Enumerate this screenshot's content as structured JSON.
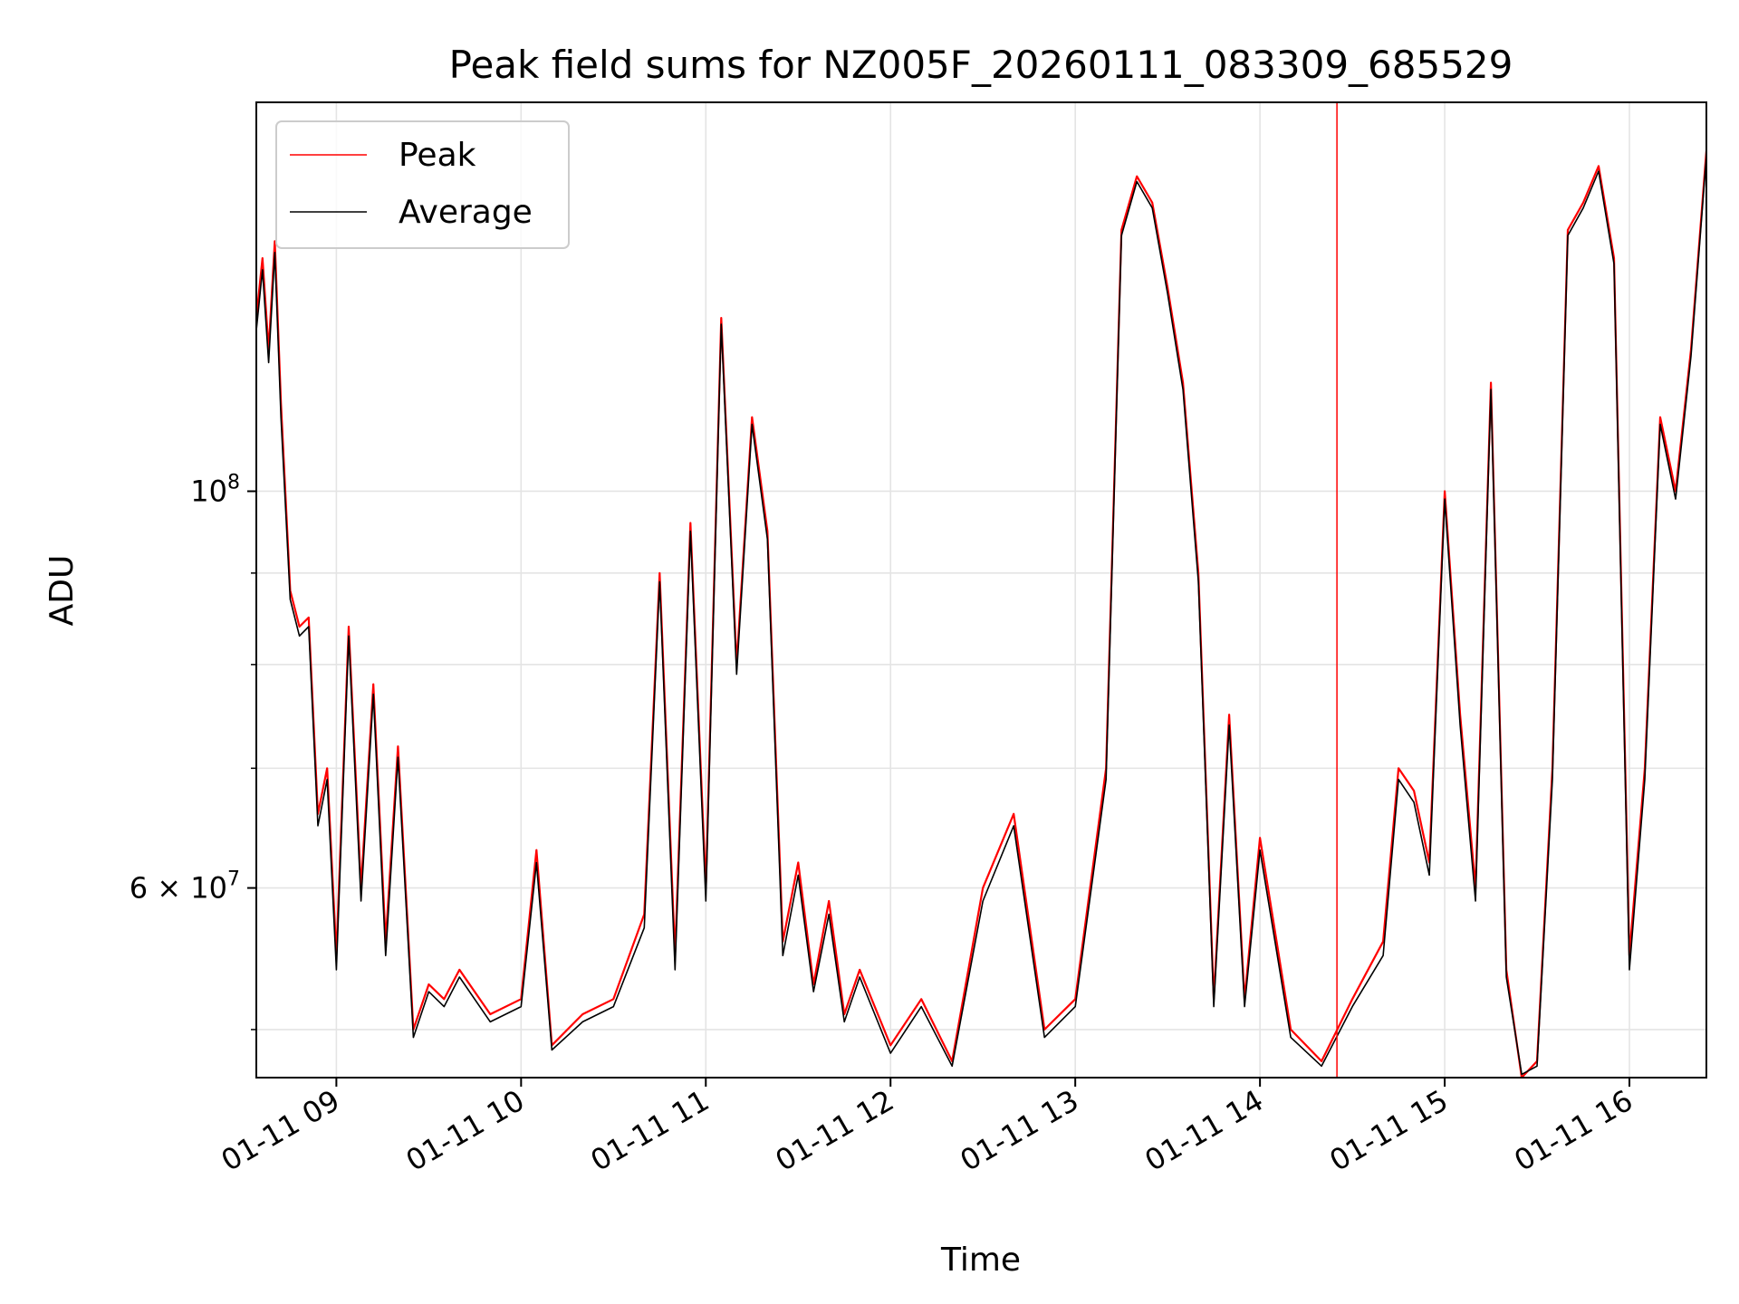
{
  "chart_data": {
    "type": "line",
    "title": "Peak field sums for NZ005F_20260111_083309_685529",
    "xlabel": "Time",
    "ylabel": "ADU",
    "y_scale": "log",
    "ylim": [
      47000000,
      165000000
    ],
    "xlim": [
      "2026-01-11 08:34",
      "2026-01-11 16:25"
    ],
    "grid": true,
    "legend_position": "top-left",
    "x_ticks": [
      {
        "value": "2026-01-11 09:00",
        "label": "01-11 09"
      },
      {
        "value": "2026-01-11 10:00",
        "label": "01-11 10"
      },
      {
        "value": "2026-01-11 11:00",
        "label": "01-11 11"
      },
      {
        "value": "2026-01-11 12:00",
        "label": "01-11 12"
      },
      {
        "value": "2026-01-11 13:00",
        "label": "01-11 13"
      },
      {
        "value": "2026-01-11 14:00",
        "label": "01-11 14"
      },
      {
        "value": "2026-01-11 15:00",
        "label": "01-11 15"
      },
      {
        "value": "2026-01-11 16:00",
        "label": "01-11 16"
      }
    ],
    "y_ticks_major": [
      {
        "value": 100000000,
        "base": "10",
        "exp": "8"
      },
      {
        "value": 60000000,
        "mantissa": "6 × 10",
        "exp": "7"
      }
    ],
    "y_ticks_minor": [
      50000000,
      70000000,
      80000000,
      90000000
    ],
    "series": [
      {
        "name": "Peak",
        "color": "#ff0000",
        "x": [
          "2026-01-11 08:34",
          "2026-01-11 08:36",
          "2026-01-11 08:38",
          "2026-01-11 08:40",
          "2026-01-11 08:42",
          "2026-01-11 08:45",
          "2026-01-11 08:48",
          "2026-01-11 08:51",
          "2026-01-11 08:54",
          "2026-01-11 08:57",
          "2026-01-11 09:00",
          "2026-01-11 09:04",
          "2026-01-11 09:08",
          "2026-01-11 09:12",
          "2026-01-11 09:16",
          "2026-01-11 09:20",
          "2026-01-11 09:25",
          "2026-01-11 09:30",
          "2026-01-11 09:35",
          "2026-01-11 09:40",
          "2026-01-11 09:50",
          "2026-01-11 10:00",
          "2026-01-11 10:05",
          "2026-01-11 10:10",
          "2026-01-11 10:20",
          "2026-01-11 10:30",
          "2026-01-11 10:40",
          "2026-01-11 10:45",
          "2026-01-11 10:50",
          "2026-01-11 10:55",
          "2026-01-11 11:00",
          "2026-01-11 11:05",
          "2026-01-11 11:10",
          "2026-01-11 11:15",
          "2026-01-11 11:20",
          "2026-01-11 11:25",
          "2026-01-11 11:30",
          "2026-01-11 11:35",
          "2026-01-11 11:40",
          "2026-01-11 11:45",
          "2026-01-11 11:50",
          "2026-01-11 12:00",
          "2026-01-11 12:10",
          "2026-01-11 12:20",
          "2026-01-11 12:30",
          "2026-01-11 12:40",
          "2026-01-11 12:50",
          "2026-01-11 13:00",
          "2026-01-11 13:10",
          "2026-01-11 13:15",
          "2026-01-11 13:20",
          "2026-01-11 13:25",
          "2026-01-11 13:30",
          "2026-01-11 13:35",
          "2026-01-11 13:40",
          "2026-01-11 13:45",
          "2026-01-11 13:50",
          "2026-01-11 13:55",
          "2026-01-11 14:00",
          "2026-01-11 14:10",
          "2026-01-11 14:20",
          "2026-01-11 14:30",
          "2026-01-11 14:40",
          "2026-01-11 14:45",
          "2026-01-11 14:50",
          "2026-01-11 14:55",
          "2026-01-11 15:00",
          "2026-01-11 15:05",
          "2026-01-11 15:10",
          "2026-01-11 15:15",
          "2026-01-11 15:20",
          "2026-01-11 15:25",
          "2026-01-11 15:30",
          "2026-01-11 15:35",
          "2026-01-11 15:40",
          "2026-01-11 15:45",
          "2026-01-11 15:50",
          "2026-01-11 15:55",
          "2026-01-11 16:00",
          "2026-01-11 16:05",
          "2026-01-11 16:10",
          "2026-01-11 16:15",
          "2026-01-11 16:20",
          "2026-01-11 16:25"
        ],
        "values": [
          125000000,
          135000000,
          120000000,
          138000000,
          112000000,
          88000000,
          84000000,
          85000000,
          66000000,
          70000000,
          55000000,
          84000000,
          60000000,
          78000000,
          56000000,
          72000000,
          50000000,
          53000000,
          52000000,
          54000000,
          51000000,
          52000000,
          63000000,
          49000000,
          51000000,
          52000000,
          58000000,
          90000000,
          55000000,
          96000000,
          60000000,
          125000000,
          80000000,
          110000000,
          95000000,
          56000000,
          62000000,
          53000000,
          59000000,
          51000000,
          54000000,
          49000000,
          52000000,
          48000000,
          60000000,
          66000000,
          50000000,
          52000000,
          70000000,
          140000000,
          150000000,
          145000000,
          130000000,
          115000000,
          90000000,
          52000000,
          75000000,
          52000000,
          64000000,
          50000000,
          48000000,
          52000000,
          56000000,
          70000000,
          68000000,
          62000000,
          100000000,
          75000000,
          60000000,
          115000000,
          54000000,
          47000000,
          48000000,
          70000000,
          140000000,
          145000000,
          152000000,
          135000000,
          55000000,
          70000000,
          110000000,
          100000000,
          120000000,
          155000000
        ]
      },
      {
        "name": "Average",
        "color": "#000000",
        "x": [
          "2026-01-11 08:34",
          "2026-01-11 08:36",
          "2026-01-11 08:38",
          "2026-01-11 08:40",
          "2026-01-11 08:42",
          "2026-01-11 08:45",
          "2026-01-11 08:48",
          "2026-01-11 08:51",
          "2026-01-11 08:54",
          "2026-01-11 08:57",
          "2026-01-11 09:00",
          "2026-01-11 09:04",
          "2026-01-11 09:08",
          "2026-01-11 09:12",
          "2026-01-11 09:16",
          "2026-01-11 09:20",
          "2026-01-11 09:25",
          "2026-01-11 09:30",
          "2026-01-11 09:35",
          "2026-01-11 09:40",
          "2026-01-11 09:50",
          "2026-01-11 10:00",
          "2026-01-11 10:05",
          "2026-01-11 10:10",
          "2026-01-11 10:20",
          "2026-01-11 10:30",
          "2026-01-11 10:40",
          "2026-01-11 10:45",
          "2026-01-11 10:50",
          "2026-01-11 10:55",
          "2026-01-11 11:00",
          "2026-01-11 11:05",
          "2026-01-11 11:10",
          "2026-01-11 11:15",
          "2026-01-11 11:20",
          "2026-01-11 11:25",
          "2026-01-11 11:30",
          "2026-01-11 11:35",
          "2026-01-11 11:40",
          "2026-01-11 11:45",
          "2026-01-11 11:50",
          "2026-01-11 12:00",
          "2026-01-11 12:10",
          "2026-01-11 12:20",
          "2026-01-11 12:30",
          "2026-01-11 12:40",
          "2026-01-11 12:50",
          "2026-01-11 13:00",
          "2026-01-11 13:10",
          "2026-01-11 13:15",
          "2026-01-11 13:20",
          "2026-01-11 13:25",
          "2026-01-11 13:30",
          "2026-01-11 13:35",
          "2026-01-11 13:40",
          "2026-01-11 13:45",
          "2026-01-11 13:50",
          "2026-01-11 13:55",
          "2026-01-11 14:00",
          "2026-01-11 14:10",
          "2026-01-11 14:20",
          "2026-01-11 14:30",
          "2026-01-11 14:40",
          "2026-01-11 14:45",
          "2026-01-11 14:50",
          "2026-01-11 14:55",
          "2026-01-11 15:00",
          "2026-01-11 15:05",
          "2026-01-11 15:10",
          "2026-01-11 15:15",
          "2026-01-11 15:20",
          "2026-01-11 15:25",
          "2026-01-11 15:30",
          "2026-01-11 15:35",
          "2026-01-11 15:40",
          "2026-01-11 15:45",
          "2026-01-11 15:50",
          "2026-01-11 15:55",
          "2026-01-11 16:00",
          "2026-01-11 16:05",
          "2026-01-11 16:10",
          "2026-01-11 16:15",
          "2026-01-11 16:20",
          "2026-01-11 16:25"
        ],
        "values": [
          123000000,
          133000000,
          118000000,
          136000000,
          110000000,
          87000000,
          83000000,
          84000000,
          65000000,
          69000000,
          54000000,
          83000000,
          59000000,
          77000000,
          55000000,
          71000000,
          49500000,
          52500000,
          51500000,
          53500000,
          50500000,
          51500000,
          62000000,
          48700000,
          50500000,
          51500000,
          57000000,
          89000000,
          54000000,
          95000000,
          59000000,
          124000000,
          79000000,
          109000000,
          94000000,
          55000000,
          61000000,
          52500000,
          58000000,
          50500000,
          53500000,
          48500000,
          51500000,
          47700000,
          59000000,
          65000000,
          49500000,
          51500000,
          69000000,
          139000000,
          149000000,
          144000000,
          129000000,
          114000000,
          89000000,
          51500000,
          74000000,
          51500000,
          63000000,
          49500000,
          47700000,
          51500000,
          55000000,
          69000000,
          67000000,
          61000000,
          99000000,
          74000000,
          59000000,
          114000000,
          53500000,
          47200000,
          47700000,
          69000000,
          139000000,
          144000000,
          151000000,
          134000000,
          54000000,
          69000000,
          109000000,
          99000000,
          119000000,
          154000000
        ]
      }
    ],
    "annotations": [
      {
        "type": "vertical-line",
        "x": "2026-01-11 14:25",
        "color": "#ff0000"
      }
    ]
  }
}
